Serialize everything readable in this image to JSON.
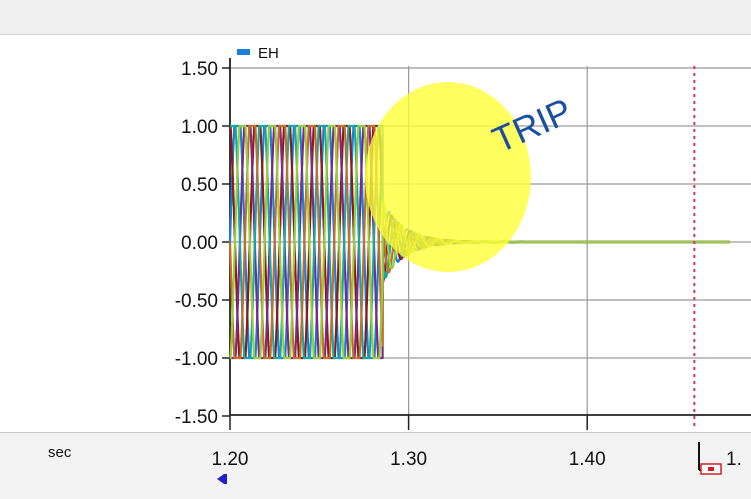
{
  "legend": {
    "label": "EH",
    "swatch_color": "#1a7fd6"
  },
  "annotation": {
    "text": "TRIP",
    "color": "#1a4fa0",
    "highlight_color": "#ffff33"
  },
  "x_axis": {
    "unit": "sec",
    "cursor_icon": "left-cursor-marker-icon",
    "end_icon": "right-cursor-handle-icon",
    "partial_label": "1."
  },
  "chart_data": {
    "type": "line",
    "title": "",
    "xlabel": "sec",
    "ylabel": "",
    "x_ticks": [
      "1.20",
      "1.30",
      "1.40"
    ],
    "y_ticks": [
      "1.50",
      "1.00",
      "0.50",
      "0.00",
      "-0.50",
      "-1.00",
      "-1.50"
    ],
    "xlim": [
      1.2,
      1.48
    ],
    "ylim": [
      -1.5,
      1.5
    ],
    "grid": true,
    "legend_position": "top-left",
    "trip_time": 1.2855,
    "cursor_time": 1.46,
    "cursor_color": "#e0334a",
    "series": [
      {
        "name": "EH",
        "color": "#1a7fd6",
        "amplitude": 1.0,
        "frequency_hz": 60,
        "phase_deg": 0
      },
      {
        "color": "#8b1a1a",
        "amplitude": 1.0,
        "frequency_hz": 60,
        "phase_deg": 120
      },
      {
        "color": "#7a2a8a",
        "amplitude": 1.0,
        "frequency_hz": 60,
        "phase_deg": 240
      },
      {
        "color": "#1aa8a0",
        "amplitude": 1.0,
        "frequency_hz": 60,
        "phase_deg": 60
      },
      {
        "color": "#c2702a",
        "amplitude": 1.0,
        "frequency_hz": 60,
        "phase_deg": 180
      },
      {
        "color": "#9acb3a",
        "amplitude": 1.0,
        "frequency_hz": 60,
        "phase_deg": 300
      }
    ]
  }
}
